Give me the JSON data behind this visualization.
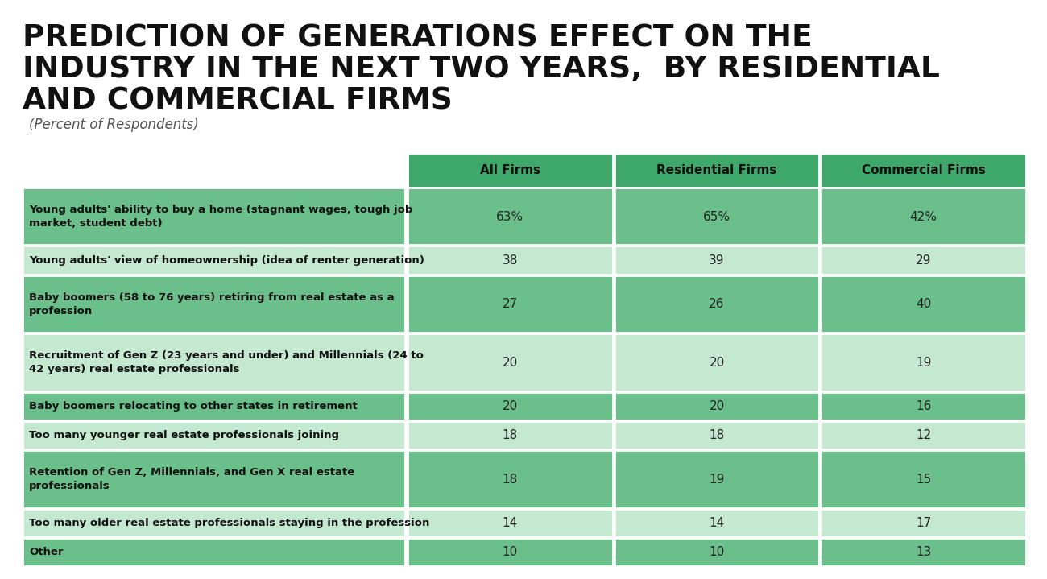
{
  "title_line1": "PREDICTION OF GENERATIONS EFFECT ON THE",
  "title_line2": "INDUSTRY IN THE NEXT TWO YEARS,  BY RESIDENTIAL",
  "title_line3": "AND COMMERCIAL FIRMS",
  "subtitle": "(Percent of Respondents)",
  "col_headers": [
    "All Firms",
    "Residential Firms",
    "Commercial Firms"
  ],
  "rows": [
    {
      "label": "Young adults' ability to buy a home (stagnant wages, tough job\nmarket, student debt)",
      "values": [
        "63%",
        "65%",
        "42%"
      ],
      "multiline": true
    },
    {
      "label": "Young adults' view of homeownership (idea of renter generation)",
      "values": [
        "38",
        "39",
        "29"
      ],
      "multiline": false
    },
    {
      "label": "Baby boomers (58 to 76 years) retiring from real estate as a\nprofession",
      "values": [
        "27",
        "26",
        "40"
      ],
      "multiline": true
    },
    {
      "label": "Recruitment of Gen Z (23 years and under) and Millennials (24 to\n42 years) real estate professionals",
      "values": [
        "20",
        "20",
        "19"
      ],
      "multiline": true
    },
    {
      "label": "Baby boomers relocating to other states in retirement",
      "values": [
        "20",
        "20",
        "16"
      ],
      "multiline": false
    },
    {
      "label": "Too many younger real estate professionals joining",
      "values": [
        "18",
        "18",
        "12"
      ],
      "multiline": false
    },
    {
      "label": "Retention of Gen Z, Millennials, and Gen X real estate\nprofessionals",
      "values": [
        "18",
        "19",
        "15"
      ],
      "multiline": true
    },
    {
      "label": "Too many older real estate professionals staying in the profession",
      "values": [
        "14",
        "14",
        "17"
      ],
      "multiline": false
    },
    {
      "label": "Other",
      "values": [
        "10",
        "10",
        "13"
      ],
      "multiline": false
    }
  ],
  "header_bg": "#3da86a",
  "row_bg_dark": "#6dc eighteen",
  "row_bg_alt_dark": "#72c495",
  "row_bg_alt_light": "#c2e8cf",
  "bg_color": "#FFFFFF",
  "title_color": "#1a1a1a",
  "header_text_color": "#111111",
  "row_text_color": "#222222",
  "label_text_color": "#111111",
  "col_header_bg": "#3da86a",
  "row_colors_dark": "#6abf8a",
  "row_colors_light": "#c5e8d0"
}
